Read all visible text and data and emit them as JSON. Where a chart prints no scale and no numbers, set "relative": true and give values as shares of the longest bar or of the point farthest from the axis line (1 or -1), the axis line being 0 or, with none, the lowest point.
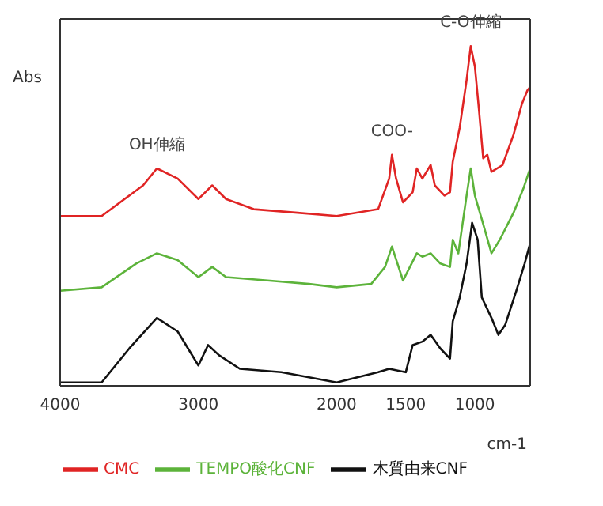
{
  "chart_data": {
    "type": "line",
    "relative": true,
    "ylabel": "Abs",
    "xlabel": "cm-1",
    "xlim": [
      4000,
      600
    ],
    "xticks": [
      4000,
      3000,
      2000,
      1500,
      1000
    ],
    "tick_labels": "x",
    "legend": "bottom",
    "marker": "none",
    "line_style": "solid",
    "annotations": [
      {
        "text": "OH伸縮",
        "x": 3300,
        "y": 0.64
      },
      {
        "text": "COO-",
        "x": 1600,
        "y": 0.68
      },
      {
        "text": "C-O伸縮",
        "x": 1030,
        "y": 1.0
      }
    ],
    "series": [
      {
        "name": "CMC",
        "color": "#e02424",
        "x": [
          4000,
          3700,
          3400,
          3300,
          3150,
          3000,
          2900,
          2800,
          2600,
          2300,
          2000,
          1700,
          1620,
          1600,
          1570,
          1520,
          1450,
          1420,
          1380,
          1320,
          1290,
          1220,
          1180,
          1160,
          1110,
          1060,
          1030,
          1000,
          970,
          940,
          910,
          880,
          800,
          720,
          660,
          620,
          600
        ],
        "values": [
          0.5,
          0.5,
          0.59,
          0.64,
          0.61,
          0.55,
          0.59,
          0.55,
          0.52,
          0.51,
          0.5,
          0.52,
          0.61,
          0.68,
          0.61,
          0.54,
          0.57,
          0.64,
          0.61,
          0.65,
          0.59,
          0.56,
          0.57,
          0.66,
          0.76,
          0.9,
          1.0,
          0.94,
          0.81,
          0.67,
          0.68,
          0.63,
          0.65,
          0.74,
          0.83,
          0.87,
          0.88
        ]
      },
      {
        "name": "TEMPO酸化CNF",
        "color": "#5cb33a",
        "x": [
          4000,
          3700,
          3450,
          3300,
          3150,
          3000,
          2900,
          2800,
          2500,
          2200,
          2000,
          1750,
          1650,
          1600,
          1560,
          1520,
          1420,
          1380,
          1320,
          1250,
          1180,
          1160,
          1120,
          1060,
          1030,
          1000,
          950,
          880,
          820,
          720,
          650,
          600
        ],
        "values": [
          0.28,
          0.29,
          0.36,
          0.39,
          0.37,
          0.32,
          0.35,
          0.32,
          0.31,
          0.3,
          0.29,
          0.3,
          0.35,
          0.41,
          0.36,
          0.31,
          0.39,
          0.38,
          0.39,
          0.36,
          0.35,
          0.43,
          0.39,
          0.56,
          0.64,
          0.56,
          0.49,
          0.39,
          0.43,
          0.51,
          0.58,
          0.64
        ]
      },
      {
        "name": "木質由来CNF",
        "color": "#111111",
        "x": [
          4000,
          3700,
          3500,
          3300,
          3150,
          3000,
          2930,
          2850,
          2700,
          2400,
          2000,
          1700,
          1620,
          1500,
          1450,
          1380,
          1320,
          1250,
          1180,
          1160,
          1110,
          1060,
          1020,
          980,
          950,
          880,
          830,
          780,
          700,
          640,
          600
        ],
        "values": [
          0.01,
          0.01,
          0.11,
          0.2,
          0.16,
          0.06,
          0.12,
          0.09,
          0.05,
          0.04,
          0.01,
          0.04,
          0.05,
          0.04,
          0.12,
          0.13,
          0.15,
          0.11,
          0.08,
          0.19,
          0.26,
          0.36,
          0.48,
          0.43,
          0.26,
          0.2,
          0.15,
          0.18,
          0.28,
          0.36,
          0.42
        ]
      }
    ]
  }
}
